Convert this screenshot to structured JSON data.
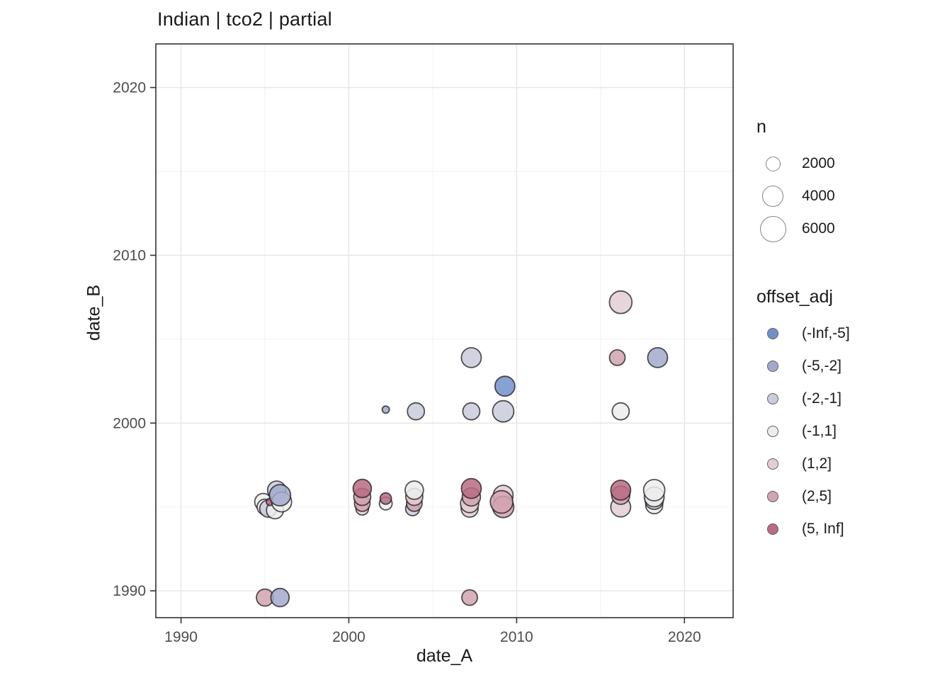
{
  "title": "Indian | tco2 | partial",
  "axes": {
    "x": {
      "label": "date_A",
      "ticks": [
        "1990",
        "2000",
        "2010",
        "2020"
      ]
    },
    "y": {
      "label": "date_B",
      "ticks": [
        "1990",
        "2000",
        "2010",
        "2020"
      ]
    }
  },
  "legend_n": {
    "title": "n",
    "entries": [
      {
        "label": "2000",
        "n": 2000
      },
      {
        "label": "4000",
        "n": 4000
      },
      {
        "label": "6000",
        "n": 6000
      }
    ]
  },
  "legend_offset": {
    "title": "offset_adj",
    "entries": [
      {
        "label": "(-Inf,-5]",
        "color": "#7190ca"
      },
      {
        "label": "(-5,-2]",
        "color": "#a2a9cd"
      },
      {
        "label": "(-2,-1]",
        "color": "#c9cdda"
      },
      {
        "label": "(-1,1]",
        "color": "#ededed"
      },
      {
        "label": "(1,2]",
        "color": "#e2ced3"
      },
      {
        "label": "(2,5]",
        "color": "#d2a3b0"
      },
      {
        "label": "(5, Inf]",
        "color": "#b96b82"
      }
    ]
  },
  "chart_data": {
    "type": "scatter",
    "title": "Indian | tco2 | partial",
    "xlabel": "date_A",
    "ylabel": "date_B",
    "xlim": [
      1988.5,
      2022.9
    ],
    "ylim": [
      1988.4,
      2022.6
    ],
    "x_major_ticks": [
      1990,
      2000,
      2010,
      2020
    ],
    "y_major_ticks": [
      1990,
      2000,
      2010,
      2020
    ],
    "x_minor_ticks": [
      1995,
      2005,
      2015
    ],
    "y_minor_ticks": [
      1995,
      2005,
      2015
    ],
    "grid": true,
    "legend_position": "right",
    "size_legend_values": [
      2000,
      4000,
      6000
    ],
    "size_scale_radius_per_sqrt_n": 0.24,
    "color_map": {
      "(-Inf,-5]": "#7190ca",
      "(-5,-2]": "#a2a9cd",
      "(-2,-1]": "#c9cdda",
      "(-1,1]": "#ededed",
      "(1,2]": "#e2ced3",
      "(2,5]": "#d2a3b0",
      "(5, Inf]": "#b96b82"
    },
    "points": [
      {
        "date_A": 1994.9,
        "date_B": 1995.3,
        "n": 2500,
        "offset_adj": "(-1,1]"
      },
      {
        "date_A": 1995.0,
        "date_B": 1995.0,
        "n": 2100,
        "offset_adj": "(-1,1]"
      },
      {
        "date_A": 1995.2,
        "date_B": 1994.9,
        "n": 2500,
        "offset_adj": "(-2,-1]"
      },
      {
        "date_A": 1995.6,
        "date_B": 1994.8,
        "n": 2500,
        "offset_adj": "(-1,1]"
      },
      {
        "date_A": 1995.3,
        "date_B": 1995.3,
        "n": 450,
        "offset_adj": "(5, Inf]"
      },
      {
        "date_A": 1995.7,
        "date_B": 1996.0,
        "n": 2900,
        "offset_adj": "(-2,-1]"
      },
      {
        "date_A": 1996.0,
        "date_B": 1995.3,
        "n": 3400,
        "offset_adj": "(-1,1]"
      },
      {
        "date_A": 1995.9,
        "date_B": 1995.7,
        "n": 3900,
        "offset_adj": "(-5,-2]"
      },
      {
        "date_A": 2000.8,
        "date_B": 1994.9,
        "n": 1400,
        "offset_adj": "(1,2]"
      },
      {
        "date_A": 2000.8,
        "date_B": 1995.2,
        "n": 2100,
        "offset_adj": "(2,5]"
      },
      {
        "date_A": 2000.8,
        "date_B": 1995.6,
        "n": 2500,
        "offset_adj": "(2,5]"
      },
      {
        "date_A": 2000.8,
        "date_B": 1996.1,
        "n": 2900,
        "offset_adj": "(5, Inf]"
      },
      {
        "date_A": 2002.2,
        "date_B": 1995.2,
        "n": 1400,
        "offset_adj": "(-1,1]"
      },
      {
        "date_A": 2002.2,
        "date_B": 1995.5,
        "n": 1100,
        "offset_adj": "(5, Inf]"
      },
      {
        "date_A": 2002.2,
        "date_B": 2000.8,
        "n": 450,
        "offset_adj": "(-5,-2]"
      },
      {
        "date_A": 2004.0,
        "date_B": 2000.7,
        "n": 2500,
        "offset_adj": "(-2,-1]"
      },
      {
        "date_A": 2003.8,
        "date_B": 1994.9,
        "n": 1700,
        "offset_adj": "(-2,-1]"
      },
      {
        "date_A": 2003.9,
        "date_B": 1995.2,
        "n": 2100,
        "offset_adj": "(2,5]"
      },
      {
        "date_A": 2003.9,
        "date_B": 1995.6,
        "n": 2500,
        "offset_adj": "(1,2]"
      },
      {
        "date_A": 2003.9,
        "date_B": 1996.0,
        "n": 2900,
        "offset_adj": "(-1,1]"
      },
      {
        "date_A": 2007.3,
        "date_B": 2003.9,
        "n": 3400,
        "offset_adj": "(-2,-1]"
      },
      {
        "date_A": 2007.3,
        "date_B": 2000.7,
        "n": 2500,
        "offset_adj": "(-2,-1]"
      },
      {
        "date_A": 2007.2,
        "date_B": 1994.9,
        "n": 2500,
        "offset_adj": "(1,2]"
      },
      {
        "date_A": 2007.2,
        "date_B": 1995.2,
        "n": 2900,
        "offset_adj": "(1,2]"
      },
      {
        "date_A": 2007.3,
        "date_B": 1995.6,
        "n": 2900,
        "offset_adj": "(2,5]"
      },
      {
        "date_A": 2007.3,
        "date_B": 1996.1,
        "n": 3400,
        "offset_adj": "(5, Inf]"
      },
      {
        "date_A": 2007.2,
        "date_B": 1989.6,
        "n": 2100,
        "offset_adj": "(2,5]"
      },
      {
        "date_A": 2009.3,
        "date_B": 2002.2,
        "n": 3400,
        "offset_adj": "(-Inf,-5]"
      },
      {
        "date_A": 2009.2,
        "date_B": 2000.7,
        "n": 3900,
        "offset_adj": "(-2,-1]"
      },
      {
        "date_A": 2009.2,
        "date_B": 1995.7,
        "n": 3400,
        "offset_adj": "(1,2]"
      },
      {
        "date_A": 2009.2,
        "date_B": 1995.0,
        "n": 3900,
        "offset_adj": "(2,5]"
      },
      {
        "date_A": 2009.1,
        "date_B": 1995.3,
        "n": 4400,
        "offset_adj": "(2,5]"
      },
      {
        "date_A": 2016.2,
        "date_B": 2007.2,
        "n": 4400,
        "offset_adj": "(1,2]"
      },
      {
        "date_A": 2016.0,
        "date_B": 2003.9,
        "n": 2100,
        "offset_adj": "(2,5]"
      },
      {
        "date_A": 2016.2,
        "date_B": 2000.7,
        "n": 2500,
        "offset_adj": "(-1,1]"
      },
      {
        "date_A": 2016.2,
        "date_B": 1995.0,
        "n": 3400,
        "offset_adj": "(1,2]"
      },
      {
        "date_A": 2016.2,
        "date_B": 1995.7,
        "n": 2900,
        "offset_adj": "(2,5]"
      },
      {
        "date_A": 2016.2,
        "date_B": 1996.0,
        "n": 3400,
        "offset_adj": "(5, Inf]"
      },
      {
        "date_A": 2018.4,
        "date_B": 2003.9,
        "n": 3400,
        "offset_adj": "(-5,-2]"
      },
      {
        "date_A": 2018.2,
        "date_B": 1995.1,
        "n": 2500,
        "offset_adj": "(-1,1]"
      },
      {
        "date_A": 2018.2,
        "date_B": 1995.4,
        "n": 2900,
        "offset_adj": "(-2,-1]"
      },
      {
        "date_A": 2018.2,
        "date_B": 1995.6,
        "n": 3400,
        "offset_adj": "(-1,1]"
      },
      {
        "date_A": 2018.2,
        "date_B": 1996.0,
        "n": 3900,
        "offset_adj": "(-1,1]"
      },
      {
        "date_A": 1995.0,
        "date_B": 1989.6,
        "n": 2500,
        "offset_adj": "(2,5]"
      },
      {
        "date_A": 1995.9,
        "date_B": 1989.6,
        "n": 2900,
        "offset_adj": "(-5,-2]"
      }
    ]
  },
  "style": {
    "panel_border": "#333333",
    "grid_major": "#e5e5e5",
    "grid_minor": "#f2f2f2",
    "tick_color": "#333333",
    "tick_label_color": "#4d4d4d",
    "point_stroke": "#1a1a1a"
  }
}
